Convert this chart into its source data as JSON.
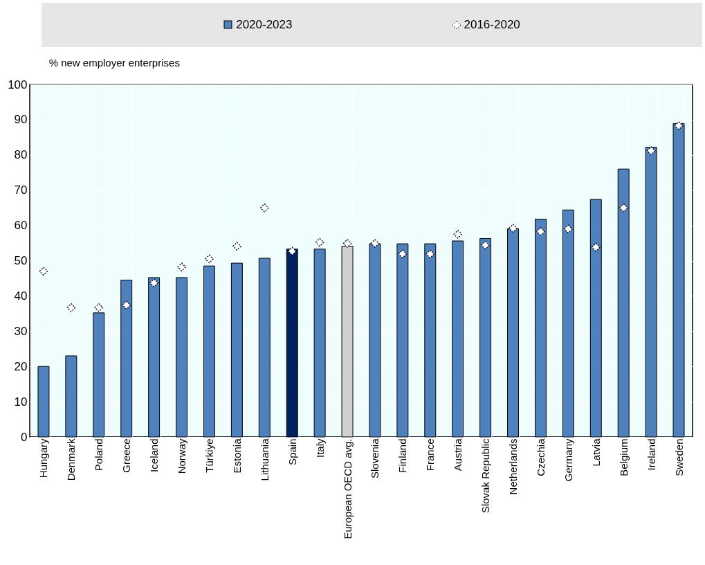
{
  "chart_data": {
    "type": "bar",
    "ylabel": "% new employer enterprises",
    "categories": [
      "Hungary",
      "Denmark",
      "Poland",
      "Greece",
      "Iceland",
      "Norway",
      "Türkiye",
      "Estonia",
      "Lithuania",
      "Spain",
      "Italy",
      "European OECD avg.",
      "Slovenia",
      "Finland",
      "France",
      "Austria",
      "Slovak Republic",
      "Netherlands",
      "Czechia",
      "Germany",
      "Latvia",
      "Belgium",
      "Ireland",
      "Sweden"
    ],
    "series": [
      {
        "name": "2020-2023",
        "color": "#4f81bd",
        "colors": [
          "#4f81bd",
          "#4f81bd",
          "#4f81bd",
          "#4f81bd",
          "#4f81bd",
          "#4f81bd",
          "#4f81bd",
          "#4f81bd",
          "#4f81bd",
          "#002060",
          "#4f81bd",
          "#d0d0d0",
          "#4f81bd",
          "#4f81bd",
          "#4f81bd",
          "#4f81bd",
          "#4f81bd",
          "#4f81bd",
          "#4f81bd",
          "#4f81bd",
          "#4f81bd",
          "#4f81bd",
          "#4f81bd",
          "#4f81bd"
        ],
        "values": [
          20,
          23,
          35.2,
          44.5,
          45.2,
          45.2,
          48.5,
          49.3,
          50.7,
          53.3,
          53.3,
          54.1,
          54.8,
          54.8,
          54.8,
          55.6,
          56.3,
          59.1,
          61.8,
          64.4,
          67.4,
          76,
          82.2,
          88.9
        ]
      },
      {
        "name": "2016-2020",
        "type": "scatter",
        "color": "#ffffff",
        "marker": "diamond",
        "line_style": "dashed",
        "values": [
          47,
          36.7,
          36.7,
          37.4,
          43.7,
          48.2,
          50.5,
          54.1,
          65,
          52.7,
          55.2,
          54.9,
          54.9,
          51.9,
          51.9,
          57.5,
          54.4,
          59.2,
          58.3,
          59,
          53.8,
          65,
          81.2,
          88.3
        ]
      }
    ],
    "ylim": [
      0,
      100
    ],
    "yticks": [
      0,
      10,
      20,
      30,
      40,
      50,
      60,
      70,
      80,
      90,
      100
    ],
    "grid": true,
    "legend": "top"
  }
}
